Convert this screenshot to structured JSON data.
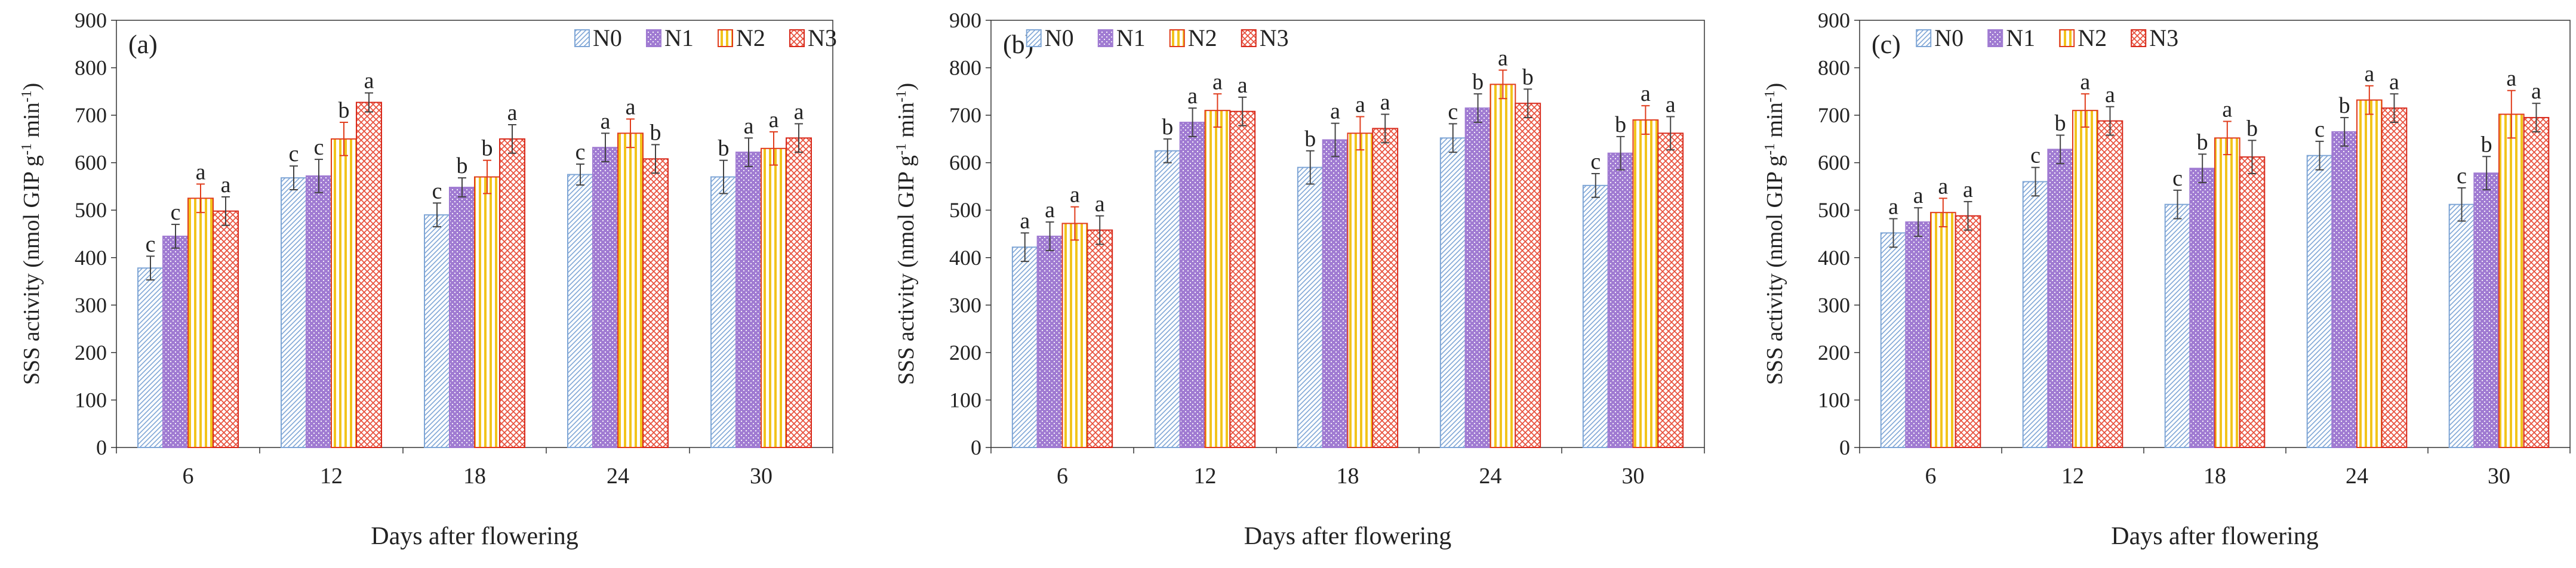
{
  "colors": {
    "N0": "#7fa6d6",
    "N1": "#a07bd2",
    "N2": "#f2c41c",
    "N3": "#e8503c",
    "N2_edge": "#e03c1c",
    "N3_edge": "#d82a1c",
    "error_bar": "#444444"
  },
  "chart_data": [
    {
      "type": "bar",
      "panel_label": "(a)",
      "xlabel": "Days after flowering",
      "ylabel": "SSS activity (nmol GIP g",
      "ylabel_sup1": "-1",
      "ylabel_mid": " min",
      "ylabel_sup2": "-1",
      "ylabel_end": ")",
      "ylim": [
        0,
        900
      ],
      "yticks": [
        "0",
        "100",
        "200",
        "300",
        "400",
        "500",
        "600",
        "700",
        "800",
        "900"
      ],
      "categories": [
        "6",
        "12",
        "18",
        "24",
        "30"
      ],
      "legend_position": "top-right",
      "series": [
        {
          "name": "N0",
          "values": [
            378,
            568,
            490,
            575,
            570
          ],
          "errors": [
            25,
            25,
            25,
            22,
            35
          ],
          "letters": [
            "c",
            "c",
            "c",
            "c",
            "b"
          ]
        },
        {
          "name": "N1",
          "values": [
            445,
            572,
            548,
            632,
            622
          ],
          "errors": [
            25,
            35,
            20,
            30,
            30
          ],
          "letters": [
            "c",
            "c",
            "b",
            "a",
            "a"
          ]
        },
        {
          "name": "N2",
          "values": [
            525,
            650,
            570,
            662,
            630
          ],
          "errors": [
            30,
            35,
            35,
            30,
            35
          ],
          "letters": [
            "a",
            "b",
            "b",
            "a",
            "a"
          ]
        },
        {
          "name": "N3",
          "values": [
            498,
            727,
            650,
            608,
            652
          ],
          "errors": [
            30,
            20,
            30,
            30,
            30
          ],
          "letters": [
            "a",
            "a",
            "a",
            "b",
            "a"
          ]
        }
      ]
    },
    {
      "type": "bar",
      "panel_label": "(b)",
      "xlabel": "Days after flowering",
      "ylabel": "SSS activity (nmol GIP g",
      "ylabel_sup1": "-1",
      "ylabel_mid": " min",
      "ylabel_sup2": "-1",
      "ylabel_end": ")",
      "ylim": [
        0,
        900
      ],
      "yticks": [
        "0",
        "100",
        "200",
        "300",
        "400",
        "500",
        "600",
        "700",
        "800",
        "900"
      ],
      "categories": [
        "6",
        "12",
        "18",
        "24",
        "30"
      ],
      "legend_position": "top-center",
      "series": [
        {
          "name": "N0",
          "values": [
            422,
            625,
            590,
            652,
            552
          ],
          "errors": [
            30,
            25,
            35,
            30,
            25
          ],
          "letters": [
            "a",
            "b",
            "b",
            "c",
            "c"
          ]
        },
        {
          "name": "N1",
          "values": [
            445,
            685,
            648,
            715,
            620
          ],
          "errors": [
            30,
            30,
            35,
            30,
            35
          ],
          "letters": [
            "a",
            "a",
            "a",
            "b",
            "b"
          ]
        },
        {
          "name": "N2",
          "values": [
            472,
            710,
            662,
            765,
            690
          ],
          "errors": [
            35,
            35,
            35,
            30,
            30
          ],
          "letters": [
            "a",
            "a",
            "a",
            "a",
            "a"
          ]
        },
        {
          "name": "N3",
          "values": [
            458,
            708,
            672,
            725,
            662
          ],
          "errors": [
            30,
            30,
            30,
            30,
            35
          ],
          "letters": [
            "a",
            "a",
            "a",
            "b",
            "a"
          ]
        }
      ]
    },
    {
      "type": "bar",
      "panel_label": "(c)",
      "xlabel": "Days after flowering",
      "ylabel": "SSS activity (nmol GIP g",
      "ylabel_sup1": "-1",
      "ylabel_mid": " min",
      "ylabel_sup2": "-1",
      "ylabel_end": ")",
      "ylim": [
        0,
        900
      ],
      "yticks": [
        "0",
        "100",
        "200",
        "300",
        "400",
        "500",
        "600",
        "700",
        "800",
        "900"
      ],
      "categories": [
        "6",
        "12",
        "18",
        "24",
        "30"
      ],
      "legend_position": "top-center",
      "series": [
        {
          "name": "N0",
          "values": [
            452,
            560,
            512,
            615,
            512
          ],
          "errors": [
            30,
            30,
            30,
            30,
            35
          ],
          "letters": [
            "a",
            "c",
            "c",
            "c",
            "c"
          ]
        },
        {
          "name": "N1",
          "values": [
            475,
            628,
            588,
            665,
            578
          ],
          "errors": [
            30,
            30,
            30,
            30,
            35
          ],
          "letters": [
            "a",
            "b",
            "b",
            "b",
            "b"
          ]
        },
        {
          "name": "N2",
          "values": [
            495,
            710,
            652,
            732,
            702
          ],
          "errors": [
            30,
            35,
            35,
            30,
            50
          ],
          "letters": [
            "a",
            "a",
            "a",
            "a",
            "a"
          ]
        },
        {
          "name": "N3",
          "values": [
            488,
            688,
            612,
            715,
            695
          ],
          "errors": [
            30,
            30,
            35,
            30,
            30
          ],
          "letters": [
            "a",
            "a",
            "b",
            "a",
            "a"
          ]
        }
      ]
    }
  ]
}
